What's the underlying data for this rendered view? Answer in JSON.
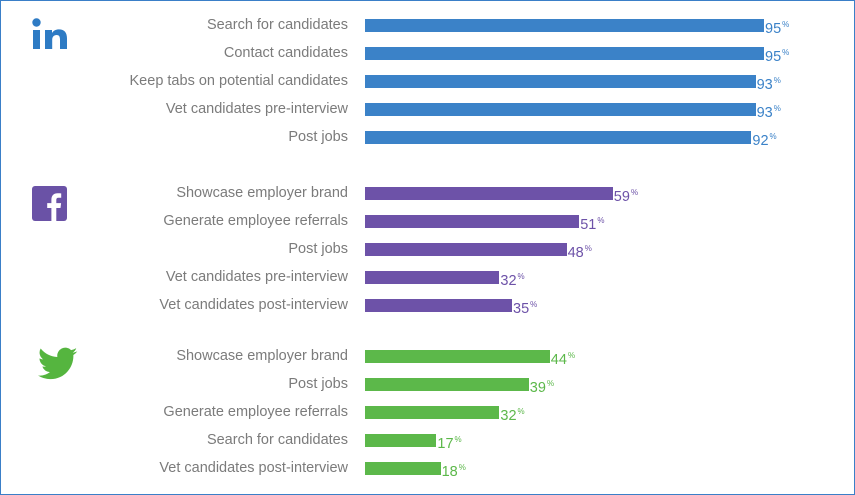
{
  "chart_data": {
    "type": "bar",
    "orientation": "horizontal",
    "unit_suffix": "%",
    "xlim": [
      0,
      100
    ],
    "grid": false,
    "groups": [
      {
        "platform": "LinkedIn",
        "icon": "linkedin-logo-icon",
        "logo_text": "in",
        "color": "#3b82c8",
        "categories": [
          "Search for candidates",
          "Contact candidates",
          "Keep tabs on potential candidates",
          "Vet candidates pre-interview",
          "Post jobs"
        ],
        "values": [
          95,
          95,
          93,
          93,
          92
        ]
      },
      {
        "platform": "Facebook",
        "icon": "facebook-logo-icon",
        "logo_text": "f",
        "color": "#6d52a8",
        "categories": [
          "Showcase employer brand",
          "Generate employee referrals",
          "Post jobs",
          "Vet candidates pre-interview",
          "Vet candidates post-interview"
        ],
        "values": [
          59,
          51,
          48,
          32,
          35
        ]
      },
      {
        "platform": "Twitter",
        "icon": "twitter-bird-icon",
        "color": "#5cb84a",
        "categories": [
          "Showcase employer brand",
          "Post jobs",
          "Generate employee referrals",
          "Search for candidates",
          "Vet candidates post-interview"
        ],
        "values": [
          44,
          39,
          32,
          17,
          18
        ]
      }
    ]
  }
}
